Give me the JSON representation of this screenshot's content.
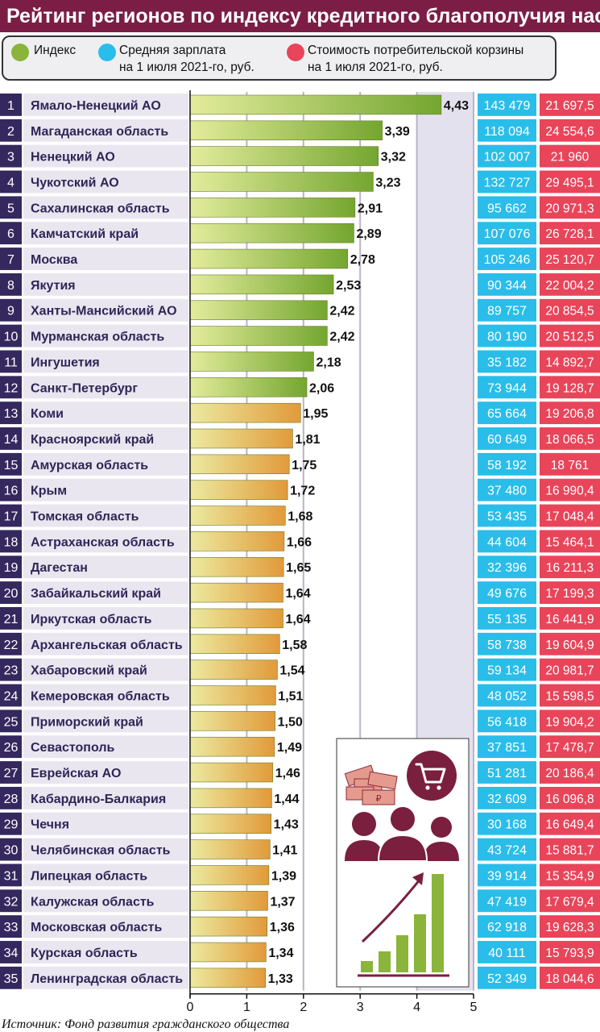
{
  "title": "Рейтинг регионов по индексу кредитного благополучия населения",
  "legend": {
    "index": "Индекс",
    "salary_l1": "Средняя зарплата",
    "salary_l2": "на 1 июля 2021-го, руб.",
    "basket_l1": "Стоимость потребительской корзины",
    "basket_l2": "на 1 июля 2021-го, руб."
  },
  "colors": {
    "title_bg": "#7b1d45",
    "index": "#8ab43a",
    "salary": "#2bbde9",
    "basket": "#e8455a",
    "rank_bg": "#35285e",
    "label_bg": "#e9e6f0"
  },
  "source": "Источник: Фонд развития гражданского общества",
  "chart_data": {
    "type": "bar",
    "orientation": "horizontal",
    "x_ticks": [
      "0",
      "1",
      "2",
      "3",
      "4",
      "5"
    ],
    "xlim": [
      0,
      5
    ],
    "categories": [
      "Ямало-Ненецкий АО",
      "Магаданская область",
      "Ненецкий АО",
      "Чукотский АО",
      "Сахалинская область",
      "Камчатский край",
      "Москва",
      "Якутия",
      "Ханты-Мансийский АО",
      "Мурманская область",
      "Ингушетия",
      "Санкт-Петербург",
      "Коми",
      "Красноярский край",
      "Амурская область",
      "Крым",
      "Томская область",
      "Астраханская область",
      "Дагестан",
      "Забайкальский край",
      "Иркутская область",
      "Архангельская область",
      "Хабаровский край",
      "Кемеровская область",
      "Приморский край",
      "Севастополь",
      "Еврейская АО",
      "Кабардино-Балкария",
      "Чечня",
      "Челябинская область",
      "Липецкая область",
      "Калужская область",
      "Московская область",
      "Курская область",
      "Ленинградская область"
    ],
    "values": [
      4.43,
      3.39,
      3.32,
      3.23,
      2.91,
      2.89,
      2.78,
      2.53,
      2.42,
      2.42,
      2.18,
      2.06,
      1.95,
      1.81,
      1.75,
      1.72,
      1.68,
      1.66,
      1.65,
      1.64,
      1.64,
      1.58,
      1.54,
      1.51,
      1.5,
      1.49,
      1.46,
      1.44,
      1.43,
      1.41,
      1.39,
      1.37,
      1.36,
      1.34,
      1.33
    ],
    "value_labels": [
      "4,43",
      "3,39",
      "3,32",
      "3,23",
      "2,91",
      "2,89",
      "2,78",
      "2,53",
      "2,42",
      "2,42",
      "2,18",
      "2,06",
      "1,95",
      "1,81",
      "1,75",
      "1,72",
      "1,68",
      "1,66",
      "1,65",
      "1,64",
      "1,64",
      "1,58",
      "1,54",
      "1,51",
      "1,50",
      "1,49",
      "1,46",
      "1,44",
      "1,43",
      "1,41",
      "1,39",
      "1,37",
      "1,36",
      "1,34",
      "1,33"
    ],
    "salary": [
      "143 479",
      "118 094",
      "102 007",
      "132 727",
      "95 662",
      "107 076",
      "105 246",
      "90 344",
      "89 757",
      "80 190",
      "35 182",
      "73 944",
      "65 664",
      "60 649",
      "58 192",
      "37 480",
      "53 435",
      "44 604",
      "32 396",
      "49 676",
      "55 135",
      "58 738",
      "59 134",
      "48 052",
      "56 418",
      "37 851",
      "51 281",
      "32 609",
      "30 168",
      "43 724",
      "39 914",
      "47 419",
      "62 918",
      "40 111",
      "52 349"
    ],
    "basket": [
      "21 697,5",
      "24 554,6",
      "21 960",
      "29 495,1",
      "20 971,3",
      "26 728,1",
      "25 120,7",
      "22 004,2",
      "20 854,5",
      "20 512,5",
      "14 892,7",
      "19 128,7",
      "19 206,8",
      "18 066,5",
      "18 761",
      "16 990,4",
      "17 048,4",
      "15 464,1",
      "16 211,3",
      "17 199,3",
      "16 441,9",
      "19 604,9",
      "20 981,7",
      "15 598,5",
      "19 904,2",
      "17 478,7",
      "20 186,4",
      "16 096,8",
      "16 649,4",
      "15 881,7",
      "15 354,9",
      "17 679,4",
      "19 628,3",
      "15 793,9",
      "18 044,6"
    ]
  }
}
